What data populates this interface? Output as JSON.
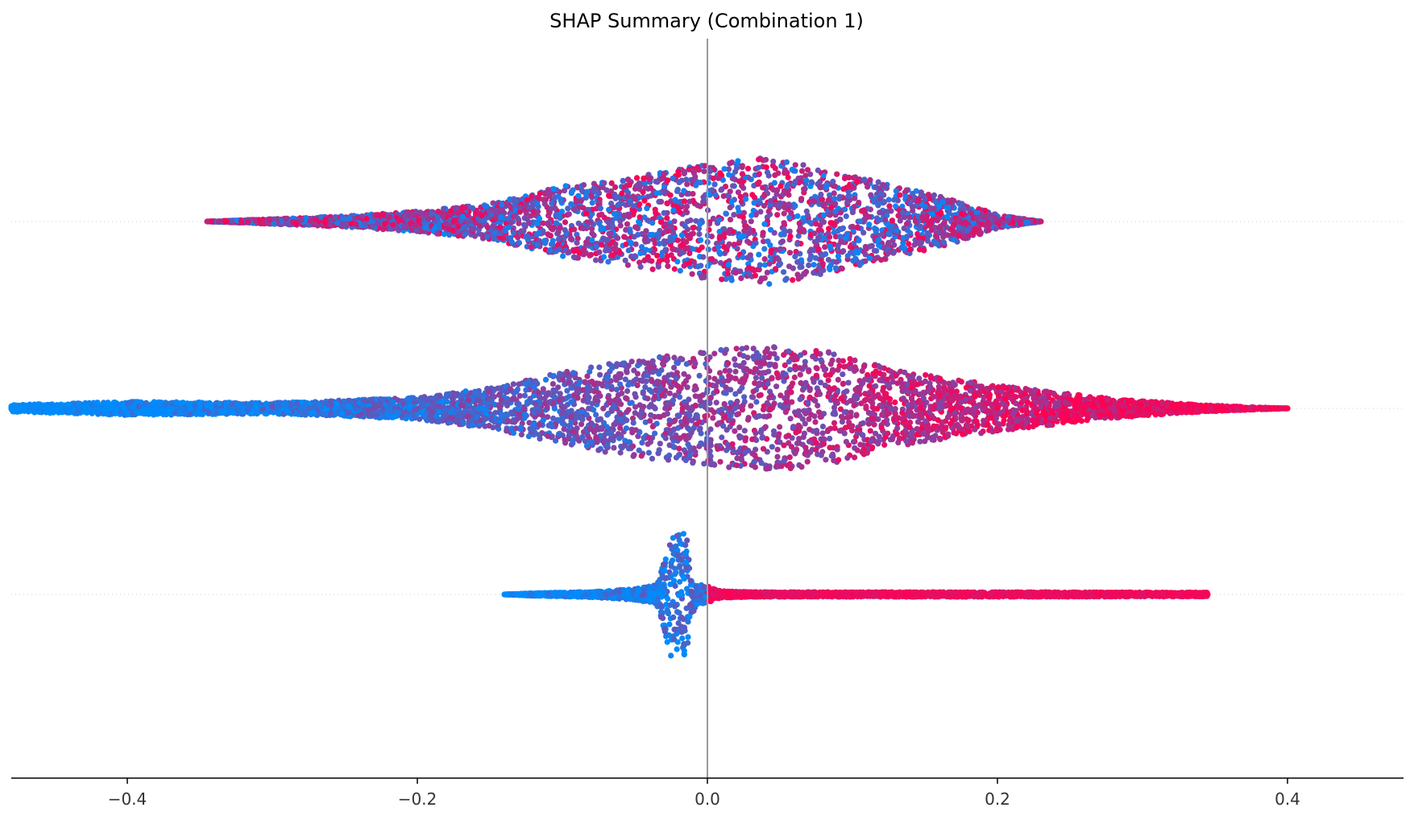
{
  "chart_data": {
    "type": "scatter",
    "subtype": "shap-beeswarm",
    "title": "SHAP Summary (Combination 1)",
    "xlabel": "",
    "ylabel": "",
    "xlim": [
      -0.48,
      0.48
    ],
    "xticks": [
      -0.4,
      -0.2,
      0.0,
      0.2,
      0.4
    ],
    "xtick_labels": [
      "−0.4",
      "−0.2",
      "0.0",
      "0.2",
      "0.4"
    ],
    "zero_line": 0.0,
    "colormap": {
      "low": "#008bfb",
      "high": "#ff0052"
    },
    "rows": [
      {
        "index": 0,
        "min": -0.345,
        "max": 0.23,
        "peak": 0.04,
        "color_trend": "mixed",
        "profile": [
          [
            -0.345,
            0.0
          ],
          [
            -0.31,
            0.03
          ],
          [
            -0.25,
            0.08
          ],
          [
            -0.2,
            0.15
          ],
          [
            -0.15,
            0.26
          ],
          [
            -0.1,
            0.52
          ],
          [
            -0.05,
            0.66
          ],
          [
            0.0,
            0.85
          ],
          [
            0.04,
            0.94
          ],
          [
            0.07,
            0.82
          ],
          [
            0.12,
            0.58
          ],
          [
            0.17,
            0.32
          ],
          [
            0.2,
            0.1
          ],
          [
            0.23,
            0.0
          ]
        ]
      },
      {
        "index": 1,
        "min": -0.48,
        "max": 0.4,
        "peak": 0.03,
        "color_trend": "increasing",
        "profile": [
          [
            -0.48,
            0.05
          ],
          [
            -0.4,
            0.1
          ],
          [
            -0.3,
            0.08
          ],
          [
            -0.2,
            0.16
          ],
          [
            -0.15,
            0.3
          ],
          [
            -0.09,
            0.58
          ],
          [
            -0.05,
            0.72
          ],
          [
            0.0,
            0.84
          ],
          [
            0.03,
            0.93
          ],
          [
            0.08,
            0.86
          ],
          [
            0.13,
            0.56
          ],
          [
            0.2,
            0.34
          ],
          [
            0.28,
            0.14
          ],
          [
            0.34,
            0.05
          ],
          [
            0.4,
            0.0
          ]
        ]
      },
      {
        "index": 2,
        "min": -0.14,
        "max": 0.345,
        "peak": -0.022,
        "color_trend": "increasing",
        "profile": [
          [
            -0.14,
            0.0
          ],
          [
            -0.12,
            0.02
          ],
          [
            -0.08,
            0.04
          ],
          [
            -0.05,
            0.08
          ],
          [
            -0.035,
            0.14
          ],
          [
            -0.03,
            0.5
          ],
          [
            -0.025,
            0.95
          ],
          [
            -0.015,
            0.95
          ],
          [
            -0.012,
            0.5
          ],
          [
            -0.008,
            0.16
          ],
          [
            0.0,
            0.12
          ],
          [
            0.01,
            0.05
          ],
          [
            0.03,
            0.035
          ],
          [
            0.2,
            0.035
          ],
          [
            0.345,
            0.03
          ]
        ]
      }
    ]
  }
}
